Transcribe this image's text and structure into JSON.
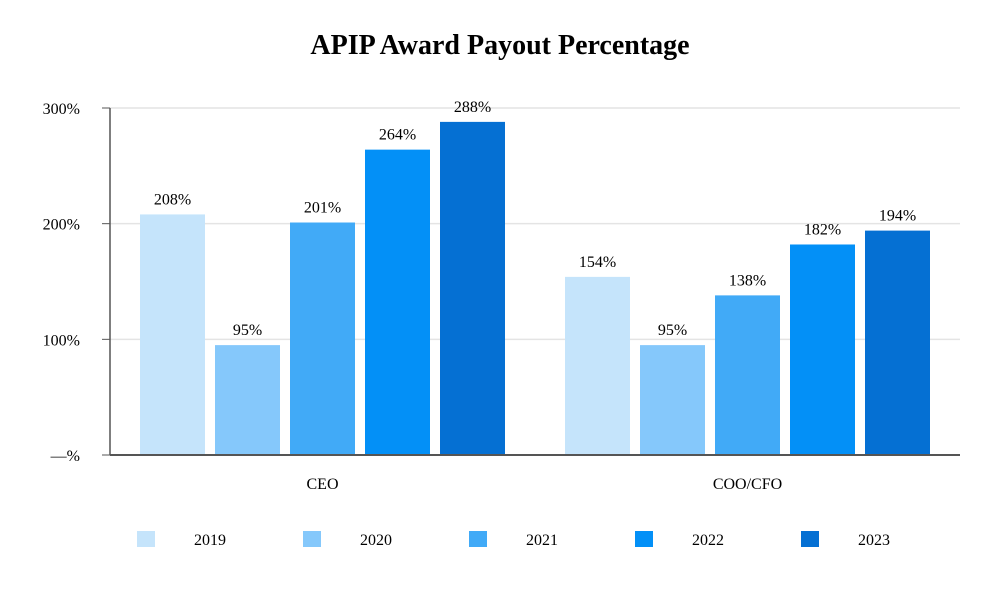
{
  "chart_data": {
    "type": "bar",
    "title": "APIP Award Payout Percentage",
    "categories": [
      "CEO",
      "COO/CFO"
    ],
    "series": [
      {
        "name": "2019",
        "values": [
          208,
          154
        ],
        "labels": [
          "208%",
          "154%"
        ],
        "color": "#c5e4fb"
      },
      {
        "name": "2020",
        "values": [
          95,
          95
        ],
        "labels": [
          "95%",
          "95%"
        ],
        "color": "#85c8fb"
      },
      {
        "name": "2021",
        "values": [
          201,
          138
        ],
        "labels": [
          "201%",
          "138%"
        ],
        "color": "#41aaf7"
      },
      {
        "name": "2022",
        "values": [
          264,
          182
        ],
        "labels": [
          "264%",
          "182%"
        ],
        "color": "#0390f7"
      },
      {
        "name": "2023",
        "values": [
          288,
          194
        ],
        "labels": [
          "288%",
          "194%"
        ],
        "color": "#0570d3"
      }
    ],
    "y_ticks": [
      0,
      100,
      200,
      300
    ],
    "y_tick_labels": [
      "—%",
      "100%",
      "200%",
      "300%"
    ],
    "ylim": [
      0,
      300
    ],
    "grid": true,
    "legend_position": "bottom"
  }
}
